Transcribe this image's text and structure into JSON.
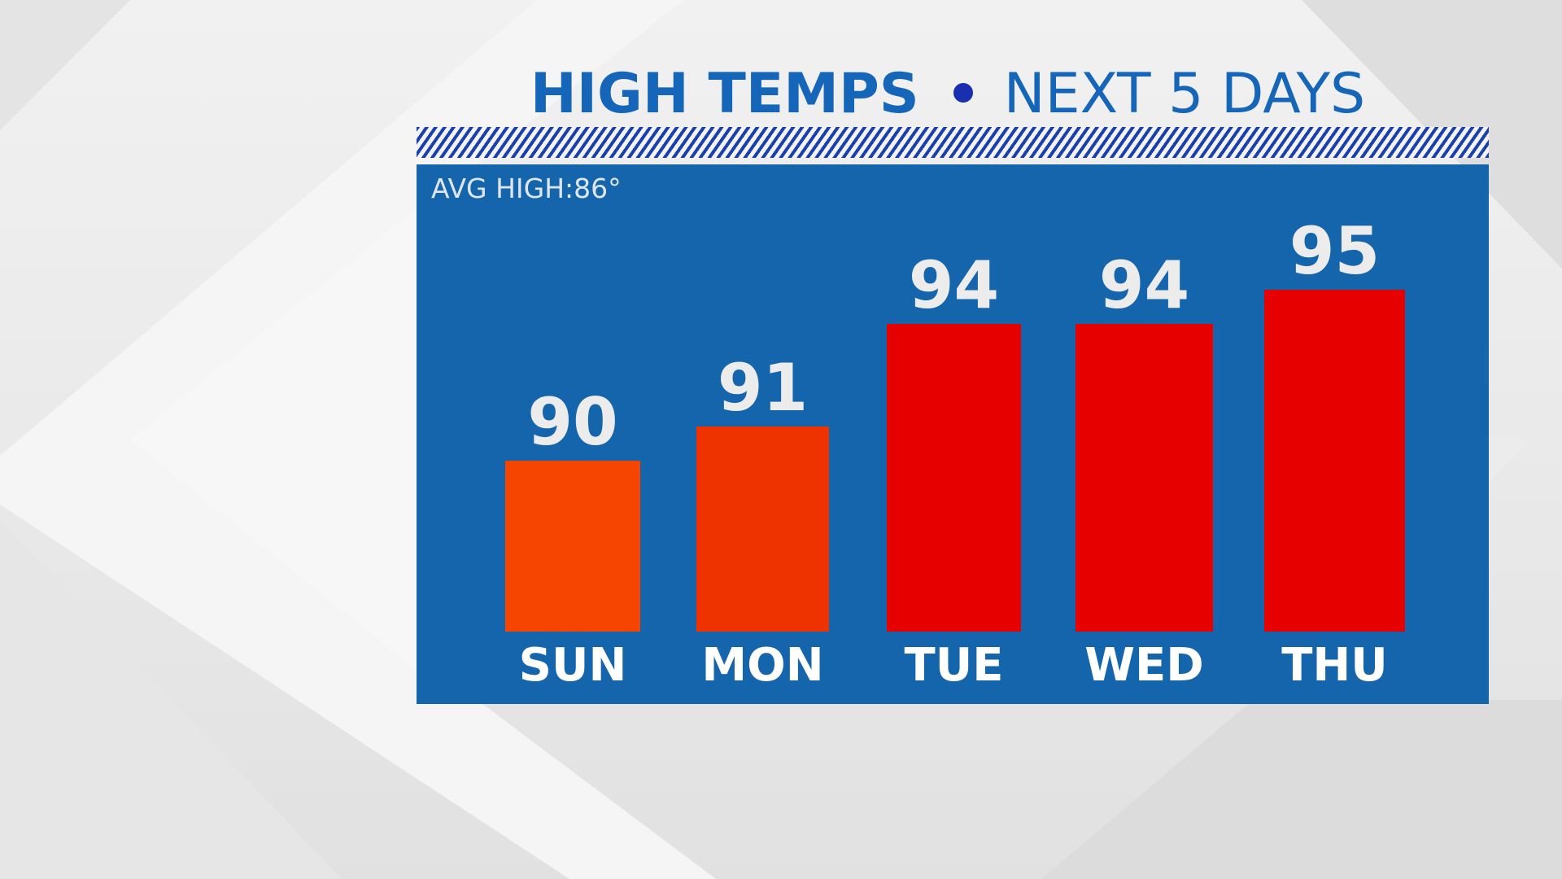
{
  "title": {
    "main": "HIGH TEMPS",
    "sub": "NEXT 5 DAYS"
  },
  "colors": {
    "panel": "#1565ad",
    "title": "#1565b8",
    "label_text": "#ececec",
    "bar_orange": "#f64500",
    "bar_orange_red": "#ee3300",
    "bar_red": "#e60000"
  },
  "chart_data": {
    "type": "bar",
    "title": "HIGH TEMPS • NEXT 5 DAYS",
    "annotation": "AVG HIGH:86°",
    "categories": [
      "SUN",
      "MON",
      "TUE",
      "WED",
      "THU"
    ],
    "values": [
      90,
      91,
      94,
      94,
      95
    ],
    "value_labels": [
      "90",
      "91",
      "94",
      "94",
      "95"
    ],
    "bar_colors": [
      "#f64500",
      "#ee3300",
      "#e60000",
      "#e60000",
      "#e60000"
    ],
    "ylim": [
      85,
      99
    ],
    "grid": false,
    "legend": false
  }
}
